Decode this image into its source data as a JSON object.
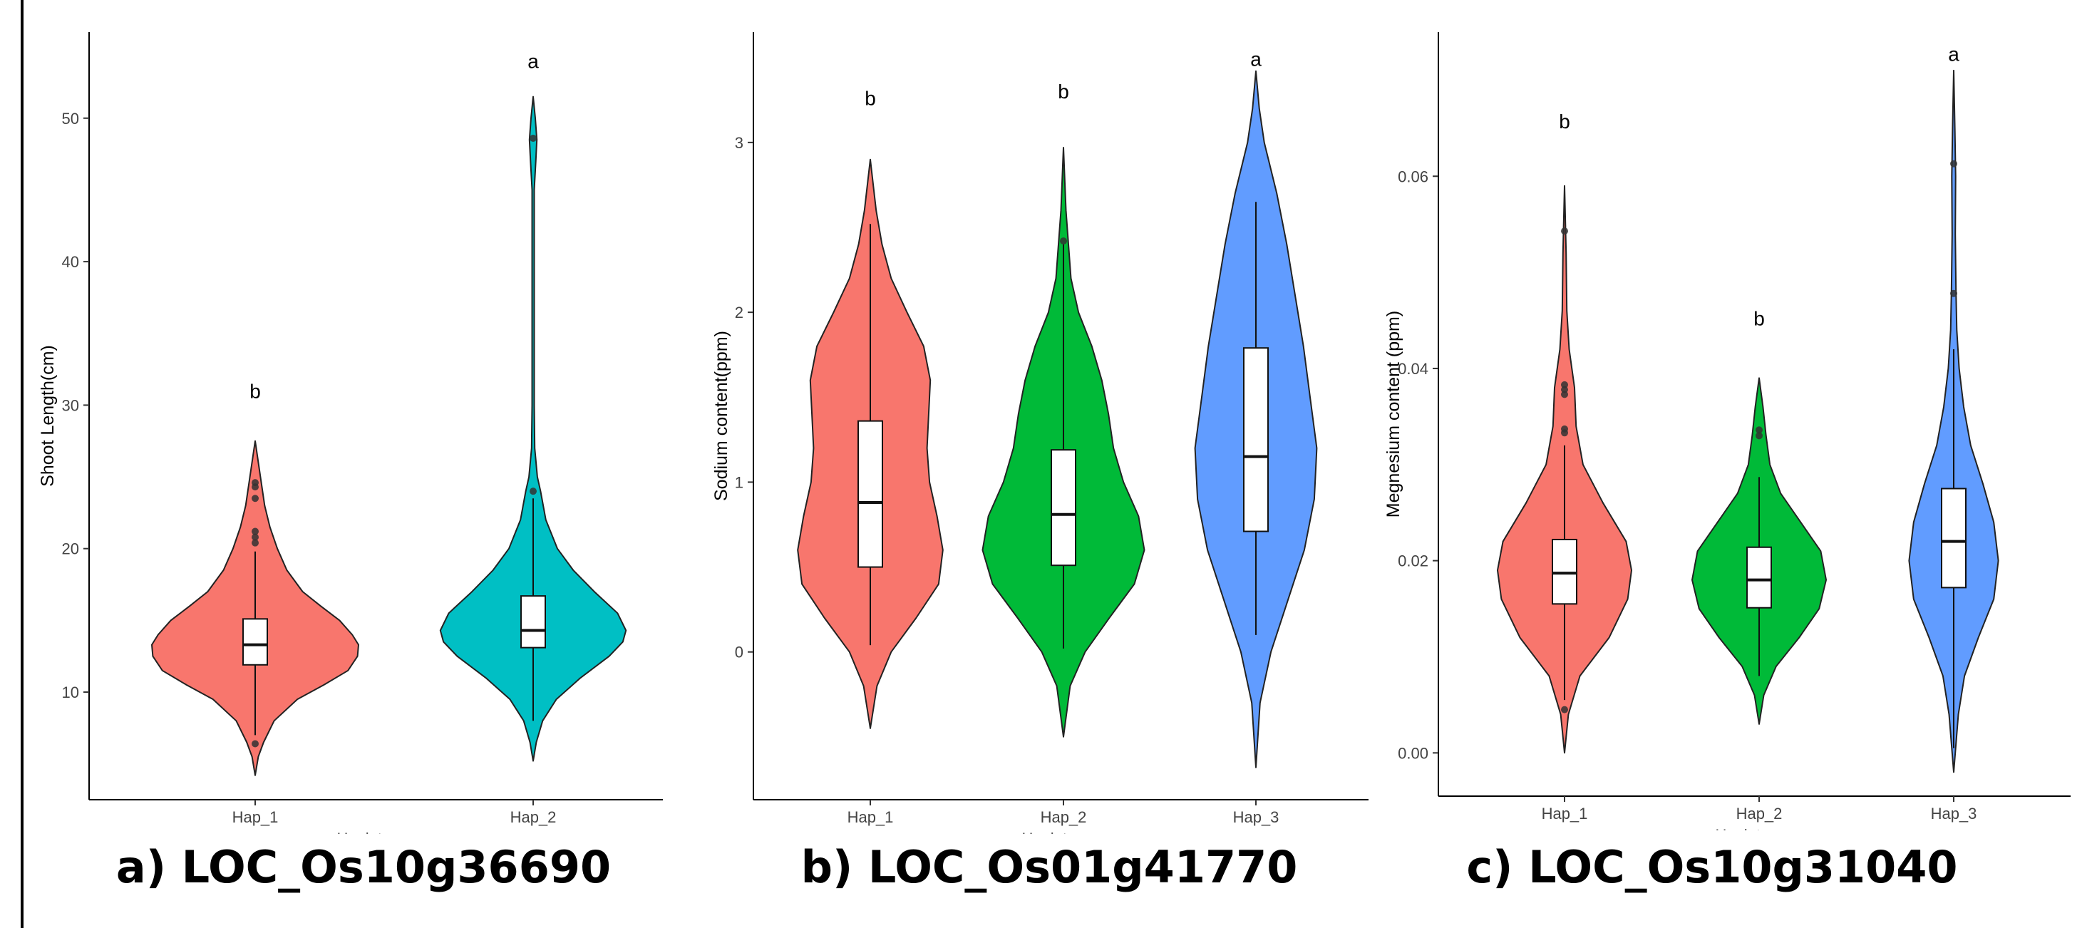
{
  "chart_data": [
    {
      "type": "violin",
      "caption": "a) LOC_Os10g36690",
      "ylabel": "Shoot Length(cm)",
      "xlabel": "Haplotypes",
      "ylim": [
        2.5,
        56
      ],
      "yticks": [
        10,
        20,
        30,
        40,
        50
      ],
      "groups": [
        {
          "name": "Hap_1",
          "color": "#F8766D",
          "letter": "b",
          "letter_y": 30.5,
          "min": 4.2,
          "max": 27.5,
          "q1": 11.9,
          "median": 13.3,
          "q3": 15.1,
          "whisker_low": 7.0,
          "whisker_high": 19.8,
          "outliers": [
            6.4,
            20.4,
            20.8,
            21.2,
            23.5,
            24.3,
            24.6
          ],
          "density": [
            [
              4.2,
              0
            ],
            [
              5.5,
              3
            ],
            [
              6.5,
              8
            ],
            [
              8,
              18
            ],
            [
              9.5,
              40
            ],
            [
              10.5,
              65
            ],
            [
              11.5,
              88
            ],
            [
              12.5,
              97
            ],
            [
              13.3,
              98
            ],
            [
              14,
              92
            ],
            [
              15,
              80
            ],
            [
              16,
              62
            ],
            [
              17,
              45
            ],
            [
              18.5,
              30
            ],
            [
              20,
              21
            ],
            [
              21.5,
              14
            ],
            [
              23,
              9
            ],
            [
              25,
              5
            ],
            [
              27.5,
              0
            ]
          ]
        },
        {
          "name": "Hap_2",
          "color": "#00BFC4",
          "letter": "a",
          "letter_y": 53.5,
          "min": 5.2,
          "max": 51.5,
          "q1": 13.1,
          "median": 14.3,
          "q3": 16.7,
          "whisker_low": 8.0,
          "whisker_high": 23.5,
          "outliers": [
            24.0,
            48.6
          ],
          "density": [
            [
              5.2,
              0
            ],
            [
              6.5,
              3
            ],
            [
              8,
              9
            ],
            [
              9.5,
              22
            ],
            [
              11,
              45
            ],
            [
              12.5,
              72
            ],
            [
              13.5,
              85
            ],
            [
              14.3,
              88
            ],
            [
              15.5,
              80
            ],
            [
              17,
              58
            ],
            [
              18.5,
              38
            ],
            [
              20,
              23
            ],
            [
              22,
              12
            ],
            [
              24,
              7
            ],
            [
              25,
              4
            ],
            [
              27,
              1.5
            ],
            [
              30,
              1
            ],
            [
              45,
              1
            ],
            [
              47,
              2.5
            ],
            [
              48.5,
              3.5
            ],
            [
              50,
              2
            ],
            [
              51.5,
              0
            ]
          ]
        }
      ]
    },
    {
      "type": "violin",
      "caption": "b) LOC_Os01g41770",
      "ylabel": "Sodium content(ppm)",
      "xlabel": "Haplotypes",
      "ylim": [
        -0.87,
        3.65
      ],
      "yticks": [
        0,
        1,
        2,
        3
      ],
      "groups": [
        {
          "name": "Hap_1",
          "color": "#F8766D",
          "letter": "b",
          "letter_y": 3.22,
          "min": -0.45,
          "max": 2.9,
          "q1": 0.5,
          "median": 0.88,
          "q3": 1.36,
          "whisker_low": 0.04,
          "whisker_high": 2.52,
          "outliers": [],
          "density": [
            [
              -0.45,
              0
            ],
            [
              -0.2,
              8
            ],
            [
              0,
              25
            ],
            [
              0.2,
              55
            ],
            [
              0.4,
              82
            ],
            [
              0.6,
              87
            ],
            [
              0.8,
              80
            ],
            [
              1.0,
              71
            ],
            [
              1.2,
              68
            ],
            [
              1.4,
              70
            ],
            [
              1.6,
              72
            ],
            [
              1.8,
              64
            ],
            [
              2.0,
              44
            ],
            [
              2.2,
              25
            ],
            [
              2.4,
              14
            ],
            [
              2.6,
              7
            ],
            [
              2.9,
              0
            ]
          ]
        },
        {
          "name": "Hap_2",
          "color": "#00BA38",
          "letter": "b",
          "letter_y": 3.26,
          "min": -0.5,
          "max": 2.97,
          "q1": 0.51,
          "median": 0.81,
          "q3": 1.19,
          "whisker_low": 0.02,
          "whisker_high": 2.4,
          "outliers": [
            2.42
          ],
          "density": [
            [
              -0.5,
              0
            ],
            [
              -0.2,
              8
            ],
            [
              0,
              26
            ],
            [
              0.2,
              55
            ],
            [
              0.4,
              85
            ],
            [
              0.6,
              97
            ],
            [
              0.8,
              90
            ],
            [
              1.0,
              72
            ],
            [
              1.2,
              60
            ],
            [
              1.4,
              54
            ],
            [
              1.6,
              46
            ],
            [
              1.8,
              34
            ],
            [
              2.0,
              18
            ],
            [
              2.2,
              9
            ],
            [
              2.4,
              6
            ],
            [
              2.6,
              3
            ],
            [
              2.97,
              0
            ]
          ]
        },
        {
          "name": "Hap_3",
          "color": "#619CFF",
          "letter": "a",
          "letter_y": 3.45,
          "min": -0.68,
          "max": 3.42,
          "q1": 0.71,
          "median": 1.15,
          "q3": 1.79,
          "whisker_low": 0.1,
          "whisker_high": 2.65,
          "outliers": [],
          "density": [
            [
              -0.68,
              0
            ],
            [
              -0.3,
              5
            ],
            [
              0,
              18
            ],
            [
              0.3,
              38
            ],
            [
              0.6,
              58
            ],
            [
              0.9,
              70
            ],
            [
              1.2,
              73
            ],
            [
              1.5,
              65
            ],
            [
              1.8,
              57
            ],
            [
              2.1,
              47
            ],
            [
              2.4,
              37
            ],
            [
              2.7,
              25
            ],
            [
              3.0,
              10
            ],
            [
              3.2,
              4
            ],
            [
              3.42,
              0
            ]
          ]
        }
      ]
    },
    {
      "type": "violin",
      "caption": "c) LOC_Os10g31040",
      "ylabel": "Megnesium content (ppm)",
      "xlabel": "Haplotypes",
      "ylim": [
        -0.0045,
        0.075
      ],
      "yticks": [
        "0.00",
        "0.02",
        "0.04",
        "0.06"
      ],
      "ytick_values": [
        0.0,
        0.02,
        0.04,
        0.06
      ],
      "groups": [
        {
          "name": "Hap_1",
          "color": "#F8766D",
          "letter": "b",
          "letter_y": 0.065,
          "min": 0.0,
          "max": 0.059,
          "q1": 0.0155,
          "median": 0.0187,
          "q3": 0.0222,
          "whisker_low": 0.0055,
          "whisker_high": 0.032,
          "outliers": [
            0.0045,
            0.0333,
            0.0337,
            0.0373,
            0.0378,
            0.0383,
            0.0543
          ],
          "density": [
            [
              0.0,
              0
            ],
            [
              0.004,
              5
            ],
            [
              0.008,
              20
            ],
            [
              0.012,
              58
            ],
            [
              0.016,
              82
            ],
            [
              0.019,
              87
            ],
            [
              0.022,
              80
            ],
            [
              0.026,
              50
            ],
            [
              0.03,
              24
            ],
            [
              0.034,
              15
            ],
            [
              0.038,
              13
            ],
            [
              0.042,
              6
            ],
            [
              0.046,
              3
            ],
            [
              0.052,
              2
            ],
            [
              0.059,
              0
            ]
          ]
        },
        {
          "name": "Hap_2",
          "color": "#00BA38",
          "letter": "b",
          "letter_y": 0.0445,
          "min": 0.003,
          "max": 0.039,
          "q1": 0.0151,
          "median": 0.018,
          "q3": 0.0214,
          "whisker_low": 0.008,
          "whisker_high": 0.0287,
          "outliers": [
            0.033,
            0.0336
          ],
          "density": [
            [
              0.003,
              0
            ],
            [
              0.006,
              6
            ],
            [
              0.009,
              22
            ],
            [
              0.012,
              52
            ],
            [
              0.015,
              78
            ],
            [
              0.018,
              87
            ],
            [
              0.021,
              80
            ],
            [
              0.024,
              54
            ],
            [
              0.027,
              28
            ],
            [
              0.03,
              14
            ],
            [
              0.033,
              9
            ],
            [
              0.036,
              5
            ],
            [
              0.039,
              0
            ]
          ]
        },
        {
          "name": "Hap_3",
          "color": "#619CFF",
          "letter": "a",
          "letter_y": 0.072,
          "min": -0.002,
          "max": 0.071,
          "q1": 0.0172,
          "median": 0.022,
          "q3": 0.0275,
          "whisker_low": 0.0005,
          "whisker_high": 0.042,
          "outliers": [
            0.0478,
            0.0613
          ],
          "density": [
            [
              -0.002,
              0
            ],
            [
              0.004,
              6
            ],
            [
              0.008,
              14
            ],
            [
              0.012,
              32
            ],
            [
              0.016,
              52
            ],
            [
              0.02,
              58
            ],
            [
              0.024,
              52
            ],
            [
              0.028,
              38
            ],
            [
              0.032,
              22
            ],
            [
              0.036,
              13
            ],
            [
              0.04,
              7
            ],
            [
              0.044,
              4
            ],
            [
              0.048,
              3
            ],
            [
              0.054,
              2
            ],
            [
              0.06,
              2.5
            ],
            [
              0.065,
              1.5
            ],
            [
              0.071,
              0
            ]
          ]
        }
      ]
    }
  ]
}
